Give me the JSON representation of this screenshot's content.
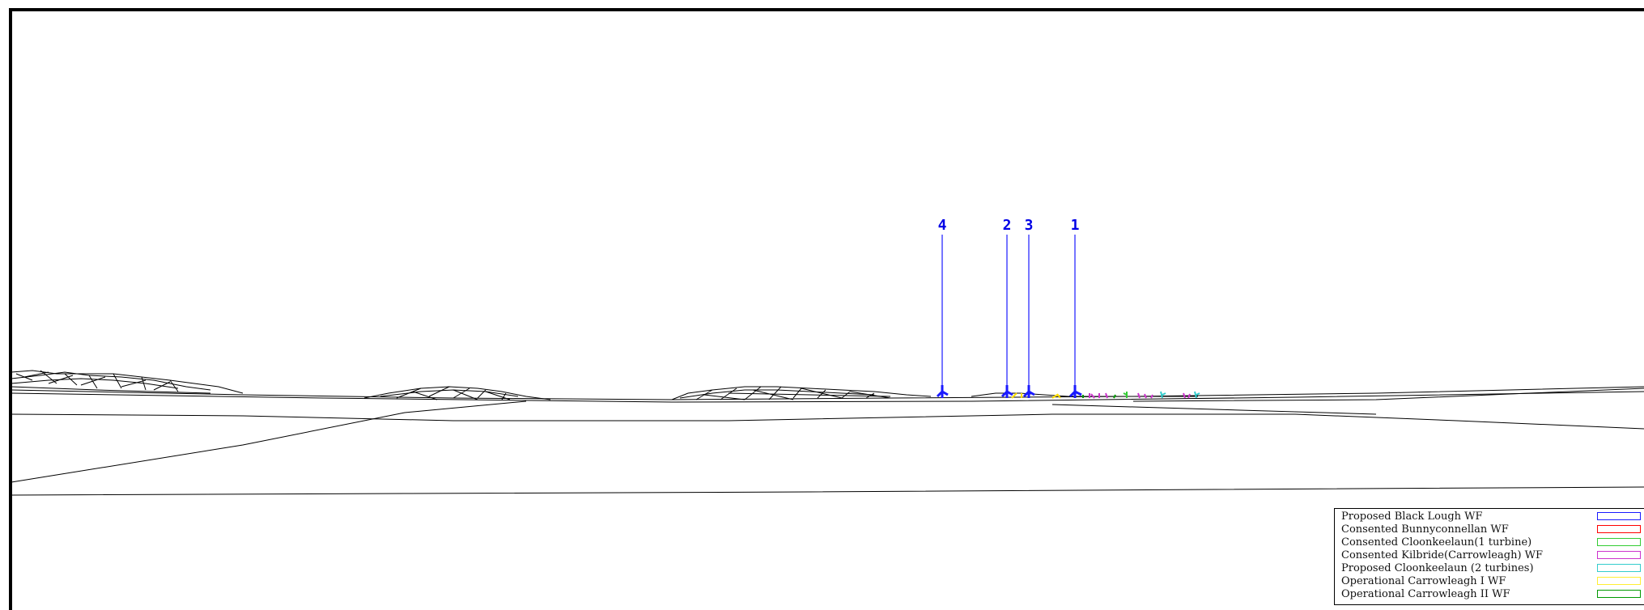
{
  "turbine_labels": [
    {
      "id": "4"
    },
    {
      "id": "2"
    },
    {
      "id": "3"
    },
    {
      "id": "1"
    }
  ],
  "legend": {
    "items": [
      {
        "label": "Proposed Black Lough WF",
        "color": "#1a1aff"
      },
      {
        "label": "Consented Bunnyconnellan WF",
        "color": "#ff0000"
      },
      {
        "label": "Consented Cloonkeelaun(1 turbine)",
        "color": "#33cc33"
      },
      {
        "label": "Consented Kilbride(Carrowleagh) WF",
        "color": "#cc33cc"
      },
      {
        "label": "Proposed Cloonkeelaun (2 turbines)",
        "color": "#33cccc"
      },
      {
        "label": "Operational Carrowleagh I WF",
        "color": "#ffee33"
      },
      {
        "label": "Operational Carrowleagh II WF",
        "color": "#009900"
      }
    ]
  },
  "colors": {
    "label_blue": "#0000e6",
    "line": "#000000"
  }
}
